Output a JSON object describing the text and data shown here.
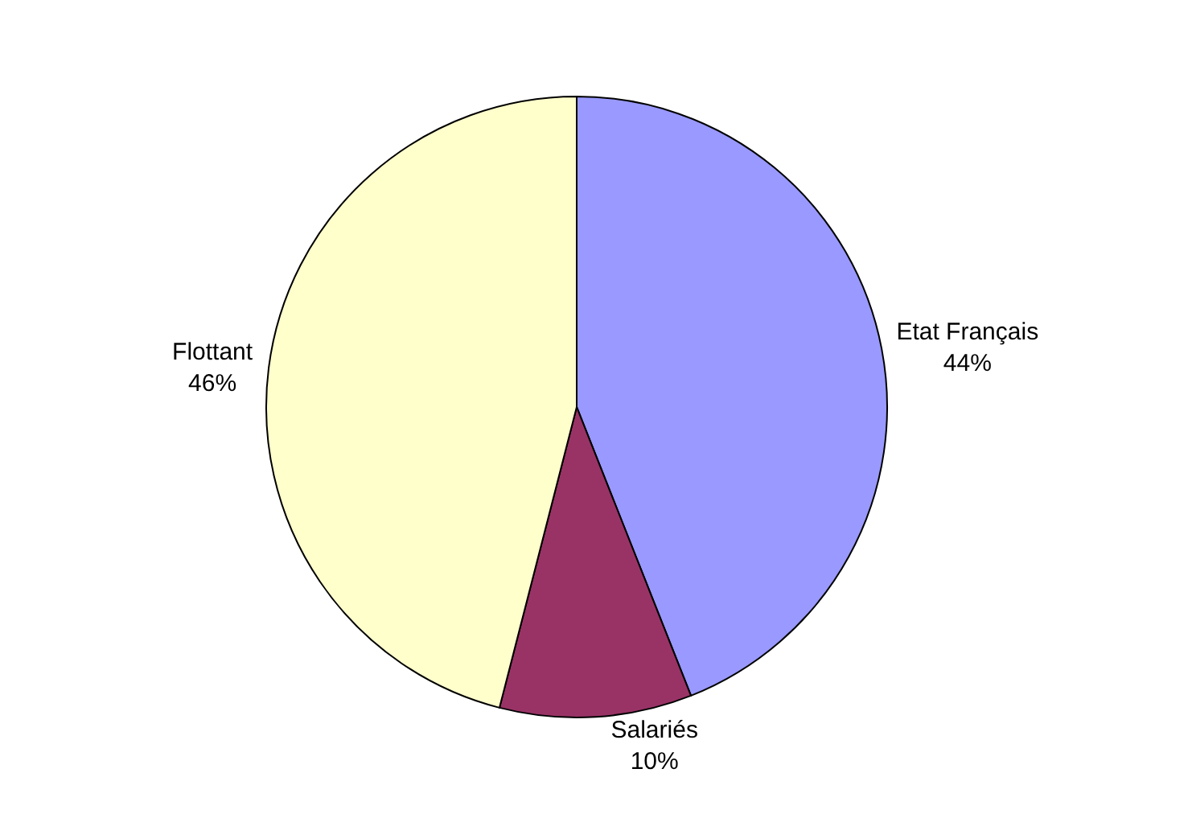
{
  "chart_data": {
    "type": "pie",
    "categories": [
      "Etat Français",
      "Salariés",
      "Flottant"
    ],
    "values": [
      44,
      10,
      46
    ],
    "value_labels": [
      "44%",
      "10%",
      "46%"
    ],
    "colors": [
      "#9999ff",
      "#993366",
      "#ffffcc"
    ],
    "legend": false
  }
}
